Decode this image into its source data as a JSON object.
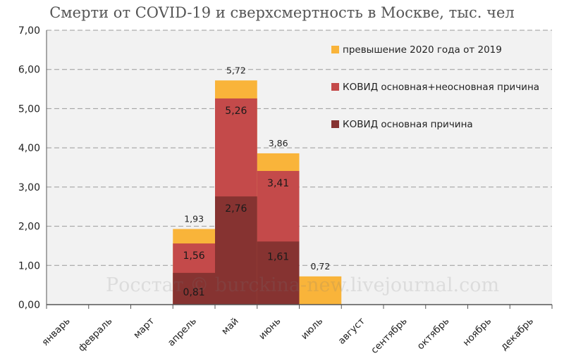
{
  "chart_data": {
    "type": "bar",
    "title": "Смерти от COVID-19 и сверхсмертность в Москве, тыс. чел",
    "xlabel": "",
    "ylabel": "",
    "categories": [
      "январь",
      "февраль",
      "март",
      "апрель",
      "май",
      "июнь",
      "июль",
      "август",
      "сентябрь",
      "октябрь",
      "ноябрь",
      "декабрь"
    ],
    "ylim": [
      0,
      7
    ],
    "yticks": [
      "0,00",
      "1,00",
      "2,00",
      "3,00",
      "4,00",
      "5,00",
      "6,00",
      "7,00"
    ],
    "grid": true,
    "legend_position": "top-right",
    "series": [
      {
        "name": "превышение 2020 года от 2019",
        "color": "#F9B43A",
        "values": [
          null,
          null,
          null,
          1.93,
          5.72,
          3.86,
          0.72,
          null,
          null,
          null,
          null,
          null
        ],
        "labels": [
          "",
          "",
          "",
          "1,93",
          "5,72",
          "3,86",
          "0,72",
          "",
          "",
          "",
          "",
          ""
        ]
      },
      {
        "name": "КОВИД основная+неосновная причина",
        "color": "#C44A4A",
        "values": [
          null,
          null,
          null,
          1.56,
          5.26,
          3.41,
          null,
          null,
          null,
          null,
          null,
          null
        ],
        "labels": [
          "",
          "",
          "",
          "1,56",
          "5,26",
          "3,41",
          "",
          "",
          "",
          "",
          "",
          ""
        ]
      },
      {
        "name": "КОВИД основная причина",
        "color": "#863331",
        "values": [
          null,
          null,
          null,
          0.81,
          2.76,
          1.61,
          null,
          null,
          null,
          null,
          null,
          null
        ],
        "labels": [
          "",
          "",
          "",
          "0,81",
          "2,76",
          "1,61",
          "",
          "",
          "",
          "",
          "",
          ""
        ]
      }
    ],
    "watermark": "Росстат © burckina-new.livejournal.com"
  }
}
